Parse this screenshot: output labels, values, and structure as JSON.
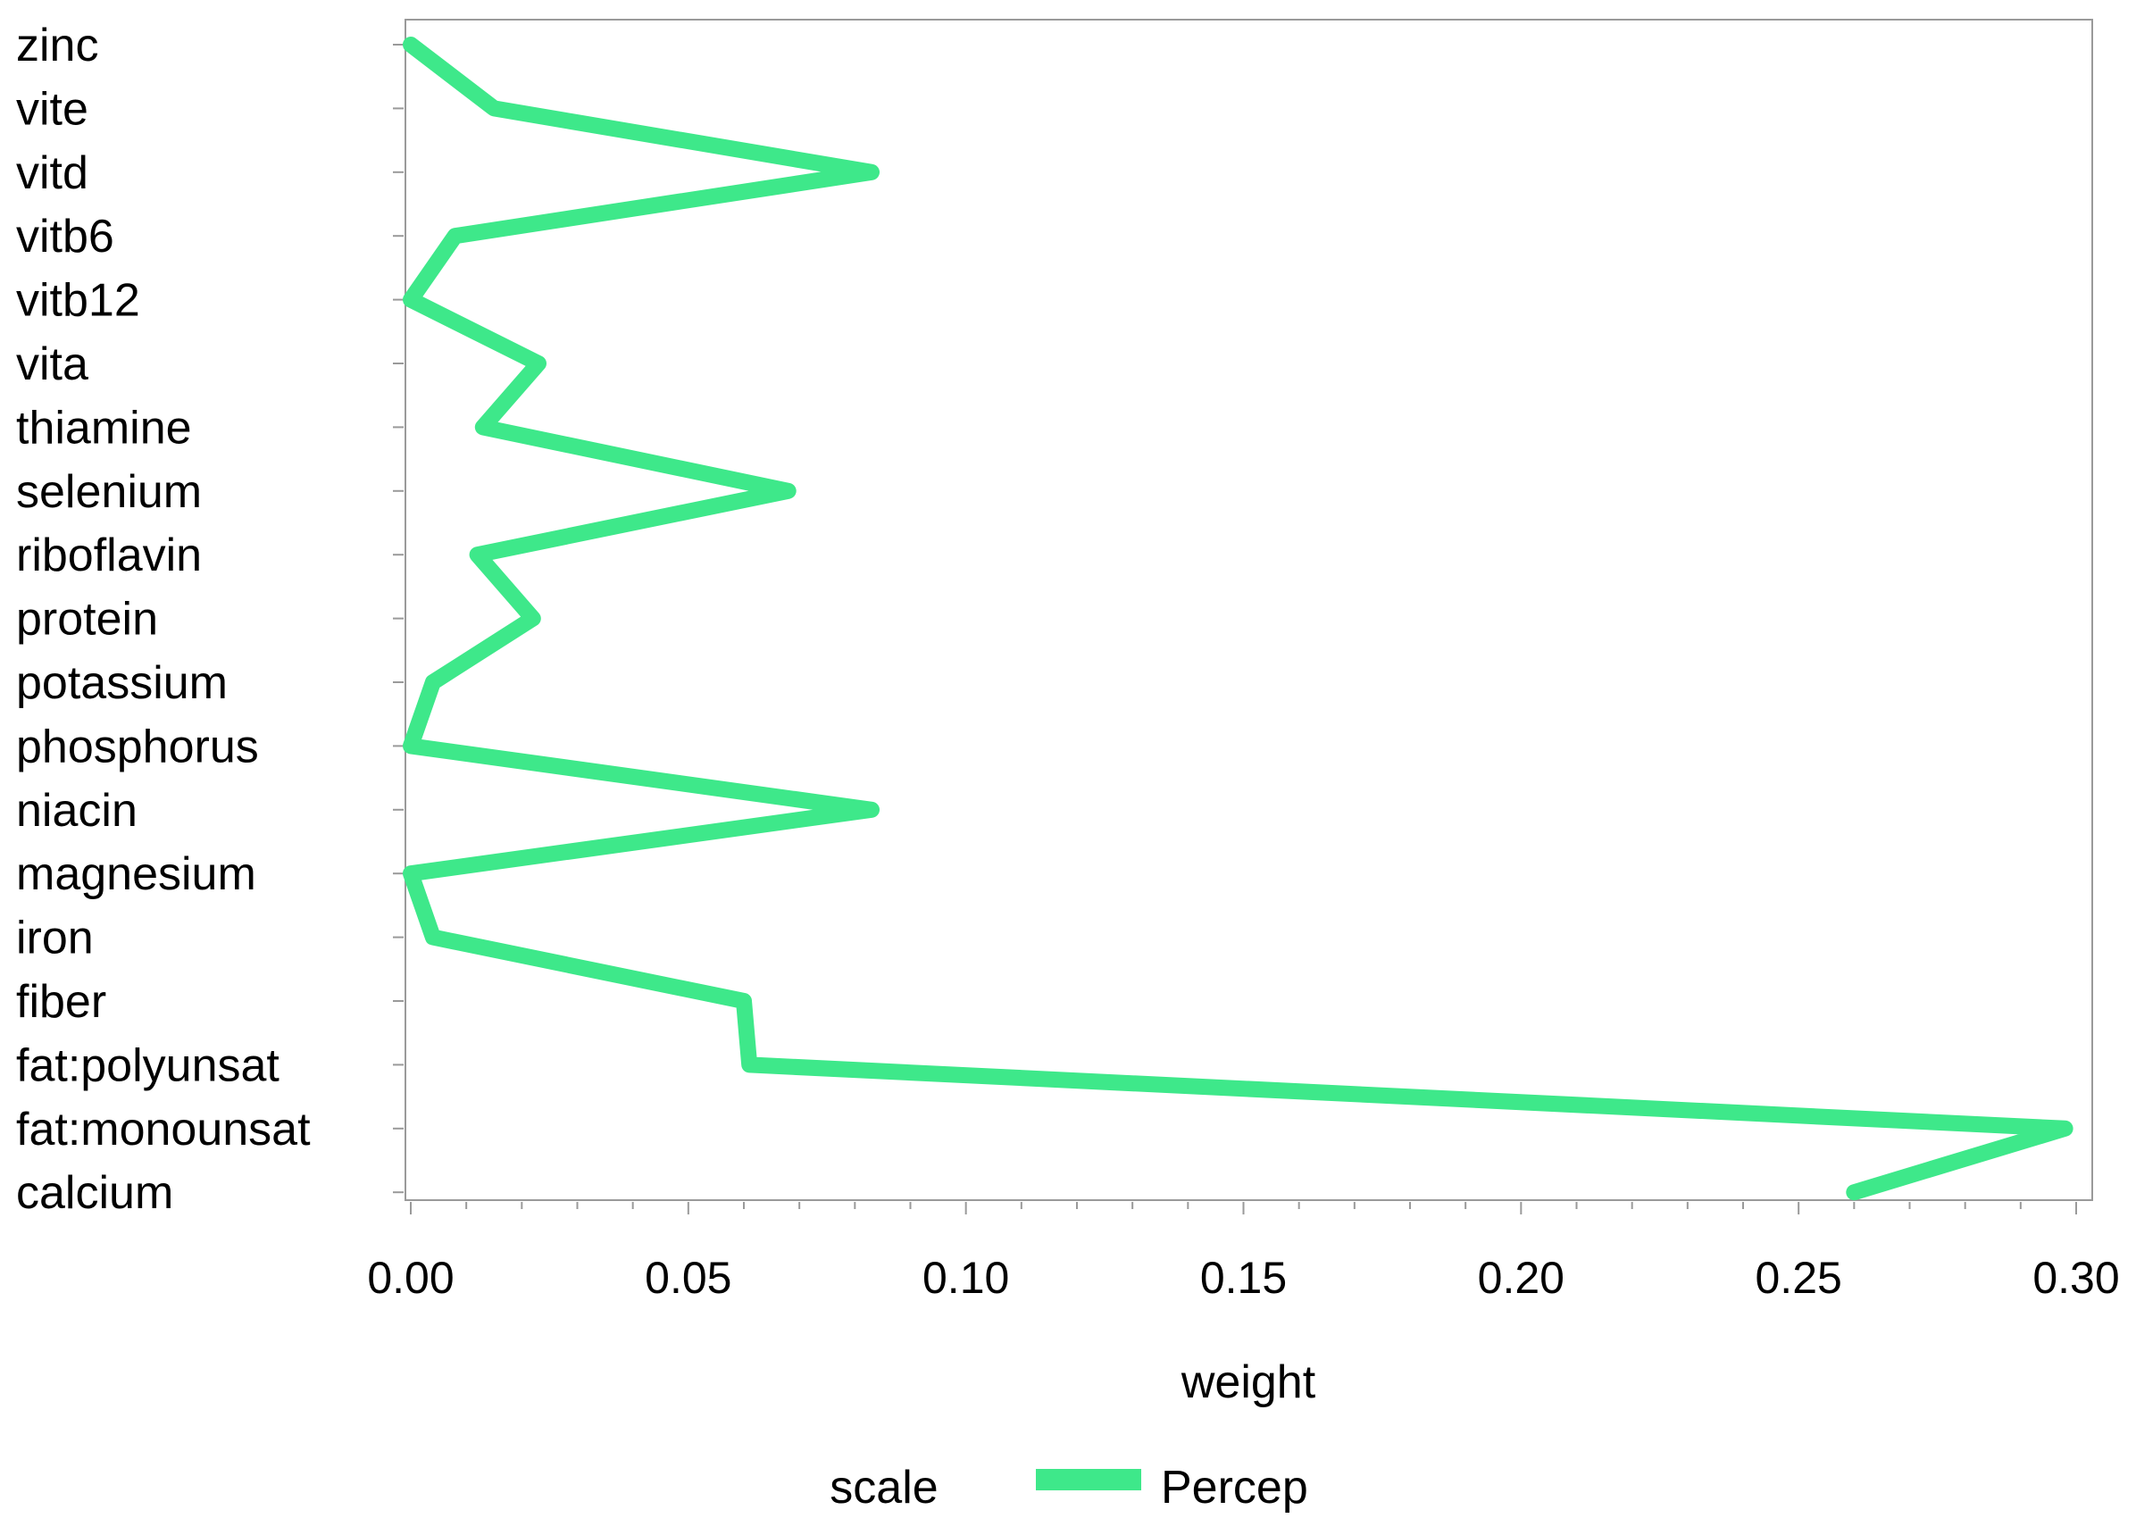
{
  "chart_data": {
    "type": "line",
    "orientation": "horizontal",
    "title": "",
    "xlabel": "weight",
    "ylabel": "",
    "xlim": [
      0,
      0.3
    ],
    "x_ticks": [
      "0.00",
      "0.05",
      "0.10",
      "0.15",
      "0.20",
      "0.25",
      "0.30"
    ],
    "grid": false,
    "legend_position": "bottom",
    "legend_title": "scale",
    "categories": [
      "zinc",
      "vite",
      "vitd",
      "vitb6",
      "vitb12",
      "vita",
      "thiamine",
      "selenium",
      "riboflavin",
      "protein",
      "potassium",
      "phosphorus",
      "niacin",
      "magnesium",
      "iron",
      "fiber",
      "fat:polyunsat",
      "fat:monounsat",
      "calcium"
    ],
    "series": [
      {
        "name": "Percep",
        "color": "#3ee88a",
        "values": [
          0.0,
          0.015,
          0.083,
          0.008,
          0.0,
          0.023,
          0.013,
          0.068,
          0.012,
          0.022,
          0.004,
          0.0,
          0.083,
          0.0,
          0.004,
          0.06,
          0.061,
          0.298,
          0.26
        ]
      }
    ]
  }
}
